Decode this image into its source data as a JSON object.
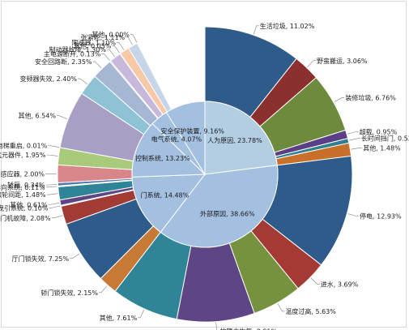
{
  "chart_data": {
    "type": "pie",
    "subtype": "sunburst",
    "title": "",
    "inner_ring": [
      {
        "name": "人为原因",
        "value": 23.78,
        "color": "#b3cde3"
      },
      {
        "name": "外部原因",
        "value": 38.66,
        "color": "#a4c0e0"
      },
      {
        "name": "门系统",
        "value": 14.48,
        "color": "#a4c0e0"
      },
      {
        "name": "控制系统",
        "value": 13.23,
        "color": "#a4c0e0"
      },
      {
        "name": "电气系统",
        "value": 4.07,
        "color": "#a4c0e0"
      },
      {
        "name": "安全保护装置",
        "value": 9.16,
        "color": "#a4c0e0"
      }
    ],
    "outer_ring": [
      {
        "name": "生活垃圾",
        "value": 11.02,
        "color": "#2e5b8a"
      },
      {
        "name": "野蛮搬运",
        "value": 3.06,
        "color": "#8b2f2f"
      },
      {
        "name": "装修垃圾",
        "value": 6.76,
        "color": "#6e8b3d"
      },
      {
        "name": "超载",
        "value": 0.95,
        "color": "#5b3f86"
      },
      {
        "name": "长时间挡门",
        "value": 0.53,
        "color": "#2f7f93"
      },
      {
        "name": "其他",
        "value": 1.48,
        "color": "#c8702a"
      },
      {
        "name": "停电",
        "value": 12.93,
        "color": "#2e5b8a"
      },
      {
        "name": "进水",
        "value": 3.69,
        "color": "#a33a35"
      },
      {
        "name": "温度过高",
        "value": 5.63,
        "color": "#77923f"
      },
      {
        "name": "故障自恢复",
        "value": 8.81,
        "color": "#5d4586"
      },
      {
        "name": "其他",
        "value": 7.61,
        "color": "#2f8498"
      },
      {
        "name": "轿门锁失效",
        "value": 2.15,
        "color": "#c67a35"
      },
      {
        "name": "厅门锁失效",
        "value": 7.25,
        "color": "#2e5b8a"
      },
      {
        "name": "门机故障",
        "value": 2.08,
        "color": "#a23a36"
      },
      {
        "name": "曳引系统",
        "value": 0.1,
        "color": "#77923f"
      },
      {
        "name": "其他",
        "value": 0.61,
        "color": "#5d4586"
      },
      {
        "name": "门刀滚轮间距",
        "value": 1.48,
        "color": "#2f8498"
      },
      {
        "name": "导向系统",
        "value": 0.11,
        "color": "#c67a35"
      },
      {
        "name": "轿厢",
        "value": 0.34,
        "color": "#4a78ad"
      },
      {
        "name": "平层感应器",
        "value": 2.0,
        "color": "#d9868a"
      },
      {
        "name": "电气元器件",
        "value": 1.95,
        "color": "#a9c97b"
      },
      {
        "name": "电梯重启",
        "value": 0.01,
        "color": "#9a86b8"
      },
      {
        "name": "其他",
        "value": 6.54,
        "color": "#a99ec3"
      },
      {
        "name": "变频器失效",
        "value": 2.4,
        "color": "#8ec3d6"
      },
      {
        "name": "安全回路断",
        "value": 2.35,
        "color": "#a5b7d3"
      },
      {
        "name": "主电源断开",
        "value": 0.13,
        "color": "#b0b0b0"
      },
      {
        "name": "制动器故障",
        "value": 1.3,
        "color": "#c7b8dc"
      },
      {
        "name": "其他",
        "value": 0.05,
        "color": "#7fb7c9"
      },
      {
        "name": "限速器",
        "value": 1.1,
        "color": "#f7c9a7"
      },
      {
        "name": "张紧轮",
        "value": 1.11,
        "color": "#c6d6e8"
      },
      {
        "name": "其他",
        "value": 0.0,
        "color": "#e6ddd0"
      }
    ]
  }
}
